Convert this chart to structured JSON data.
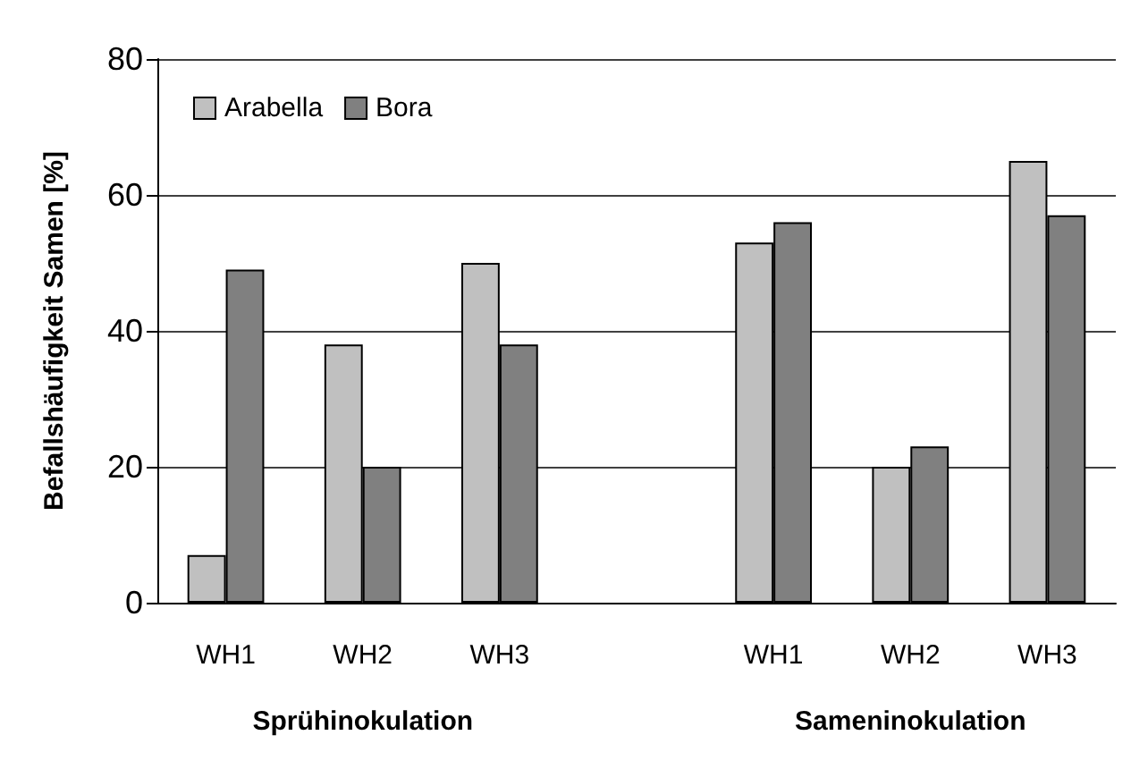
{
  "chart_data": {
    "type": "bar",
    "ylabel": "Befallshäufigkeit Samen [%]",
    "categories": [
      "WH1",
      "WH2",
      "WH3",
      null,
      "WH1",
      "WH2",
      "WH3"
    ],
    "series": [
      {
        "name": "Arabella",
        "color": "#c0c0c0",
        "values": [
          7,
          38,
          50,
          null,
          53,
          20,
          65
        ]
      },
      {
        "name": "Bora",
        "color": "#808080",
        "values": [
          49,
          20,
          38,
          null,
          56,
          23,
          57
        ]
      }
    ],
    "ylim": [
      0,
      80
    ],
    "yticks": [
      0,
      20,
      40,
      60,
      80
    ],
    "grid": "y",
    "legend": "top left",
    "annotations": [
      "Sprühinokulation",
      "Sameninokulation"
    ]
  }
}
